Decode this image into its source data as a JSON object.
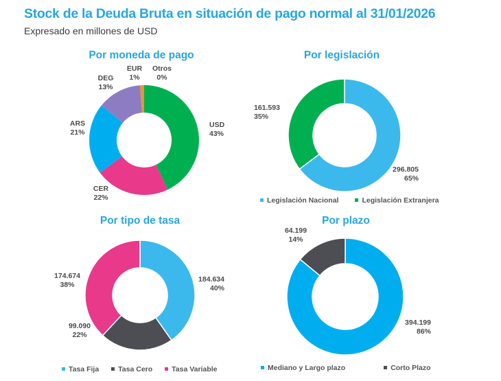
{
  "header": {
    "title": "Stock de la Deuda Bruta en situación de pago normal al 31/01/2026",
    "subtitle": "Expresado en millones de USD"
  },
  "chart_data": [
    {
      "type": "pie",
      "variant": "donut",
      "title": "Por moneda de pago",
      "categories": [
        "USD",
        "CER",
        "ARS",
        "DEG",
        "EUR",
        "Otros"
      ],
      "values": [
        43,
        22,
        21,
        13,
        1,
        0
      ],
      "value_unit": "%",
      "labels": [
        {
          "name": "USD",
          "value": "43%"
        },
        {
          "name": "CER",
          "value": "22%"
        },
        {
          "name": "ARS",
          "value": "21%"
        },
        {
          "name": "DEG",
          "value": "13%"
        },
        {
          "name": "EUR",
          "value": "1%"
        },
        {
          "name": "Otros",
          "value": "0%"
        }
      ],
      "colors": [
        "#00b050",
        "#e8398a",
        "#00aeef",
        "#8e7cc3",
        "#f0922b",
        "#7f7f7f"
      ],
      "legend": null
    },
    {
      "type": "pie",
      "variant": "donut",
      "title": "Por legislación",
      "categories": [
        "Legislación Nacional",
        "Legislación Extranjera"
      ],
      "values": [
        296805,
        161593
      ],
      "percentages": [
        65,
        35
      ],
      "labels": [
        {
          "amount": "296.805",
          "pct": "65%"
        },
        {
          "amount": "161.593",
          "pct": "35%"
        }
      ],
      "colors": [
        "#3bb9ec",
        "#00b050"
      ],
      "legend": "bottom"
    },
    {
      "type": "pie",
      "variant": "donut",
      "title": "Por tipo de tasa",
      "categories": [
        "Tasa Fija",
        "Tasa Cero",
        "Tasa Variable"
      ],
      "values": [
        184634,
        99090,
        174674
      ],
      "percentages": [
        40,
        22,
        38
      ],
      "labels": [
        {
          "amount": "184.634",
          "pct": "40%"
        },
        {
          "amount": "99.090",
          "pct": "22%"
        },
        {
          "amount": "174.674",
          "pct": "38%"
        }
      ],
      "colors": [
        "#3bb9ec",
        "#4d4e53",
        "#e8398a"
      ],
      "legend": "bottom"
    },
    {
      "type": "pie",
      "variant": "donut",
      "title": "Por plazo",
      "categories": [
        "Mediano y Largo plazo",
        "Corto Plazo"
      ],
      "values": [
        394199,
        64199
      ],
      "percentages": [
        86,
        14
      ],
      "labels": [
        {
          "amount": "394.199",
          "pct": "86%"
        },
        {
          "amount": "64.199",
          "pct": "14%"
        }
      ],
      "colors": [
        "#00aeef",
        "#4d4e53"
      ],
      "legend": "bottom"
    }
  ]
}
